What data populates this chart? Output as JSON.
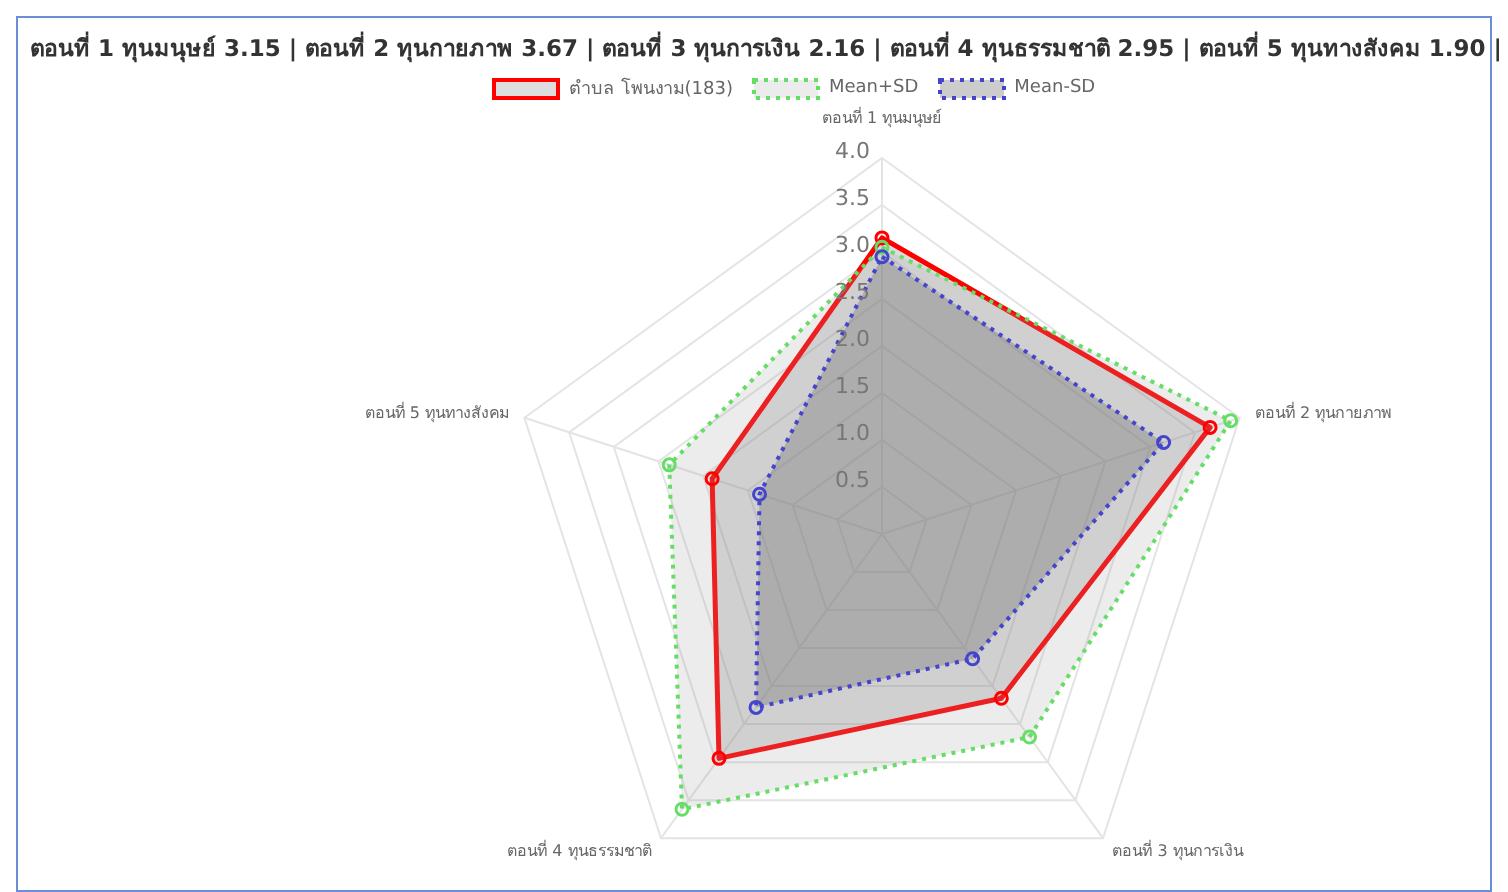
{
  "chart_data": {
    "type": "radar",
    "title": "ตอนที่ 1 ทุนมนุษย์ 3.15 | ตอนที่ 2 ทุนกายภาพ 3.67 | ตอนที่ 3 ทุนการเงิน 2.16 | ตอนที่ 4 ทุนธรรมชาติ 2.95 | ตอนที่ 5 ทุนทางสังคม 1.90 |",
    "categories": [
      "ตอนที่ 1 ทุนมนุษย์",
      "ตอนที่ 2 ทุนกายภาพ",
      "ตอนที่ 3 ทุนการเงิน",
      "ตอนที่ 4 ทุนธรรมชาติ",
      "ตอนที่ 5 ทุนทางสังคม"
    ],
    "series": [
      {
        "name": "ตำบล โพนงาม(183)",
        "color": "#ff0000",
        "line_style": "solid",
        "values": [
          3.15,
          3.67,
          2.16,
          2.95,
          1.9
        ]
      },
      {
        "name": "Mean+SD",
        "color": "#66dd66",
        "line_style": "dotted",
        "values": [
          3.05,
          3.9,
          2.67,
          3.62,
          2.38
        ]
      },
      {
        "name": "Mean-SD",
        "color": "#4444cc",
        "line_style": "dotted",
        "values": [
          2.95,
          3.15,
          1.64,
          2.28,
          1.37
        ]
      }
    ],
    "ylim": [
      0,
      4
    ],
    "yticks": [
      {
        "value": 0.5,
        "label": "0.5"
      },
      {
        "value": 1,
        "label": "1.0"
      },
      {
        "value": 1.5,
        "label": "1.5"
      },
      {
        "value": 2,
        "label": "2.0"
      },
      {
        "value": 2.5,
        "label": "2.5"
      },
      {
        "value": 3,
        "label": "3.0"
      },
      {
        "value": 3.5,
        "label": "3.5"
      },
      {
        "value": 4,
        "label": "4.0"
      }
    ],
    "grid": true,
    "legend": "top",
    "marker": "circle"
  }
}
